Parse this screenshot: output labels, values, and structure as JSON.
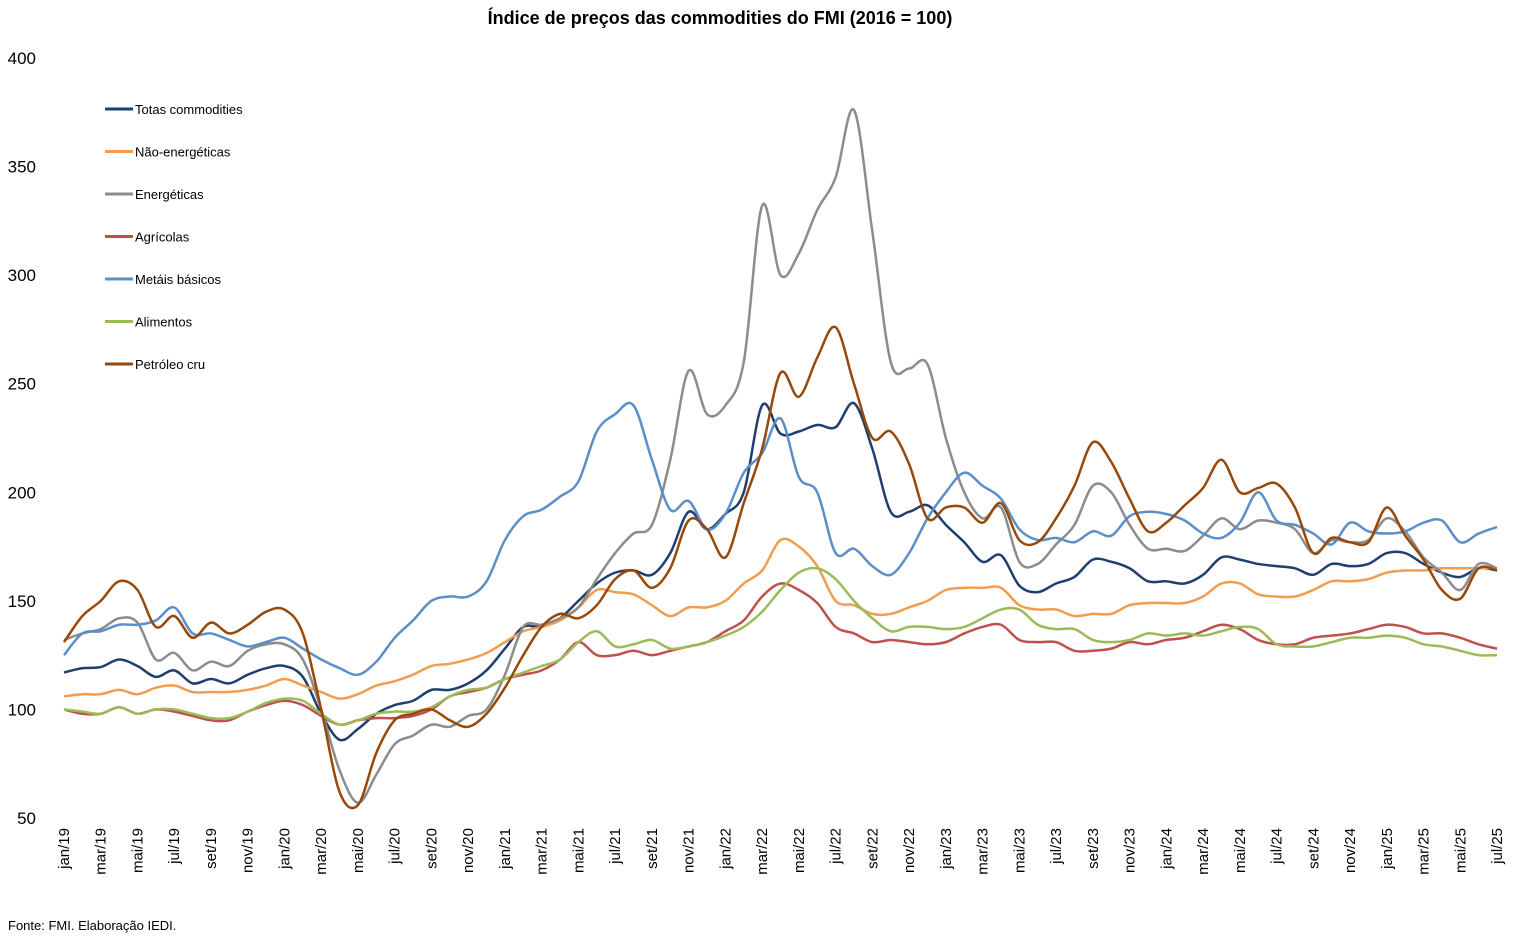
{
  "chart_data": {
    "type": "line",
    "title": "Índice de preços das commodities do FMI  (2016 = 100)",
    "source": "Fonte: FMI. Elaboração IEDI.",
    "categories": [
      "jan/19",
      null,
      "mar/19",
      null,
      "mai/19",
      null,
      "jul/19",
      null,
      "set/19",
      null,
      "nov/19",
      null,
      "jan/20",
      null,
      "mar/20",
      null,
      "mai/20",
      null,
      "jul/20",
      null,
      "set/20",
      null,
      "nov/20",
      null,
      "jan/21",
      null,
      "mar/21",
      null,
      "mai/21",
      null,
      "jul/21",
      null,
      "set/21",
      null,
      "nov/21",
      null,
      "jan/22",
      null,
      "mar/22",
      null,
      "mai/22",
      null,
      "jul/22",
      null,
      "set/22",
      null,
      "nov/22",
      null,
      "jan/23",
      null,
      "mar/23",
      null,
      "mai/23",
      null,
      "jul/23",
      null,
      "set/23",
      null,
      "nov/23",
      null,
      "jan/24",
      null,
      "mar/24",
      null,
      "mai/24",
      null,
      "jul/24",
      null,
      "set/24",
      null,
      "nov/24",
      null,
      "jan/25",
      null,
      "mar/25",
      null,
      "mai/25",
      null,
      "jul/25"
    ],
    "ylim": [
      50,
      400
    ],
    "yticks": [
      50,
      100,
      150,
      200,
      250,
      300,
      350,
      400
    ],
    "grid": false,
    "legend": "top-left",
    "series": [
      {
        "name": "Totas commodities",
        "color": "#1f3f6e",
        "values": [
          117,
          119,
          119.5,
          123,
          120,
          115,
          118,
          112,
          114,
          112,
          116,
          119,
          120,
          115,
          98,
          86,
          91,
          98,
          102,
          104,
          109,
          109,
          112,
          118,
          128,
          138,
          138,
          142,
          150,
          158,
          163,
          164,
          162,
          172,
          191,
          183,
          190,
          200,
          240,
          227,
          228,
          231,
          230,
          241,
          220,
          191,
          191,
          194,
          185,
          177,
          168,
          171,
          157,
          154,
          158,
          161,
          169,
          168,
          165,
          159,
          159,
          158,
          162,
          170,
          169,
          167,
          166,
          165,
          162,
          167,
          166,
          167,
          172,
          172,
          167,
          163,
          161,
          165,
          164
        ]
      },
      {
        "name": "Não-energéticas",
        "color": "#f19d4f",
        "values": [
          106,
          107,
          107,
          109,
          107,
          110,
          111,
          108,
          108,
          108,
          109,
          111,
          114,
          111,
          108,
          105,
          107,
          111,
          113,
          116,
          120,
          121,
          123,
          126,
          131,
          136,
          138,
          141,
          147,
          155,
          154,
          153,
          148,
          143,
          147,
          147,
          150,
          158,
          164,
          178,
          175,
          166,
          150,
          148,
          144,
          144,
          147,
          150,
          155,
          156,
          156,
          156,
          148,
          146,
          146,
          143,
          144,
          144,
          148,
          149,
          149,
          149,
          152,
          158,
          158,
          153,
          152,
          152,
          155,
          159,
          159,
          160,
          163,
          164,
          164,
          165,
          165,
          165,
          165
        ]
      },
      {
        "name": "Energéticas",
        "color": "#8c8c8c",
        "values": [
          132,
          135,
          137,
          142,
          140,
          123,
          126,
          118,
          122,
          120,
          127,
          130,
          130,
          123,
          100,
          72,
          57,
          70,
          84,
          88,
          93,
          92,
          97,
          100,
          116,
          138,
          139,
          142,
          147,
          160,
          172,
          181,
          185,
          215,
          256,
          236,
          240,
          260,
          332,
          300,
          310,
          330,
          345,
          376,
          320,
          260,
          257,
          259,
          225,
          200,
          188,
          193,
          168,
          167,
          176,
          185,
          203,
          200,
          185,
          174,
          174,
          173,
          180,
          188,
          183,
          187,
          186,
          183,
          172,
          178,
          177,
          178,
          188,
          182,
          170,
          163,
          155,
          167,
          165
        ]
      },
      {
        "name": "Agrícolas",
        "color": "#c0504d",
        "values": [
          100,
          98,
          98,
          101,
          98,
          100,
          99,
          97,
          95,
          95,
          99,
          102,
          104,
          102,
          97,
          93,
          95,
          96,
          96,
          97,
          100,
          106,
          108,
          110,
          114,
          116,
          118,
          123,
          131,
          125,
          125,
          127,
          125,
          127,
          129,
          131,
          136,
          141,
          152,
          158,
          155,
          149,
          138,
          135,
          131,
          132,
          131,
          130,
          131,
          135,
          138,
          139,
          132,
          131,
          131,
          127,
          127,
          128,
          131,
          130,
          132,
          133,
          136,
          139,
          137,
          132,
          130,
          130,
          133,
          134,
          135,
          137,
          139,
          138,
          135,
          135,
          133,
          130,
          128
        ]
      },
      {
        "name": "Metáis básicos",
        "color": "#5b8fc9",
        "values": [
          125,
          135,
          136,
          139,
          139,
          141,
          147,
          135,
          135,
          132,
          129,
          131,
          133,
          128,
          123,
          119,
          116,
          122,
          133,
          141,
          150,
          152,
          152,
          159,
          178,
          189,
          192,
          198,
          205,
          228,
          236,
          240,
          215,
          192,
          196,
          183,
          190,
          209,
          218,
          234,
          207,
          200,
          172,
          174,
          166,
          162,
          172,
          188,
          200,
          209,
          203,
          197,
          183,
          178,
          179,
          177,
          182,
          180,
          189,
          191,
          190,
          187,
          181,
          179,
          186,
          200,
          187,
          185,
          181,
          176,
          186,
          182,
          181,
          182,
          186,
          187,
          177,
          181,
          184
        ]
      },
      {
        "name": "Alimentos",
        "color": "#9bbb59",
        "values": [
          100,
          99,
          98,
          101,
          98,
          100,
          100,
          98,
          96,
          96,
          99,
          103,
          105,
          104,
          98,
          93,
          95,
          98,
          99,
          99,
          101,
          106,
          109,
          110,
          114,
          117,
          120,
          123,
          131,
          136,
          129,
          130,
          132,
          128,
          129,
          131,
          134,
          138,
          145,
          155,
          163,
          165,
          160,
          150,
          142,
          136,
          138,
          138,
          137,
          138,
          142,
          146,
          146,
          139,
          137,
          137,
          132,
          131,
          132,
          135,
          134,
          135,
          134,
          136,
          138,
          137,
          130,
          129,
          129,
          131,
          133,
          133,
          134,
          133,
          130,
          129,
          127,
          125,
          125
        ]
      },
      {
        "name": "Petróleo cru",
        "color": "#984807",
        "values": [
          131,
          143,
          150,
          159,
          155,
          138,
          143,
          133,
          140,
          135,
          139,
          145,
          146,
          135,
          100,
          62,
          56,
          80,
          95,
          98,
          100,
          95,
          92,
          98,
          110,
          125,
          138,
          144,
          142,
          148,
          160,
          164,
          156,
          165,
          187,
          183,
          170,
          195,
          220,
          255,
          244,
          262,
          276,
          250,
          225,
          228,
          213,
          188,
          193,
          193,
          186,
          195,
          178,
          177,
          188,
          203,
          223,
          214,
          197,
          182,
          186,
          194,
          202,
          215,
          200,
          202,
          204,
          193,
          172,
          179,
          177,
          177,
          193,
          180,
          169,
          155,
          151,
          165,
          164
        ]
      }
    ]
  }
}
